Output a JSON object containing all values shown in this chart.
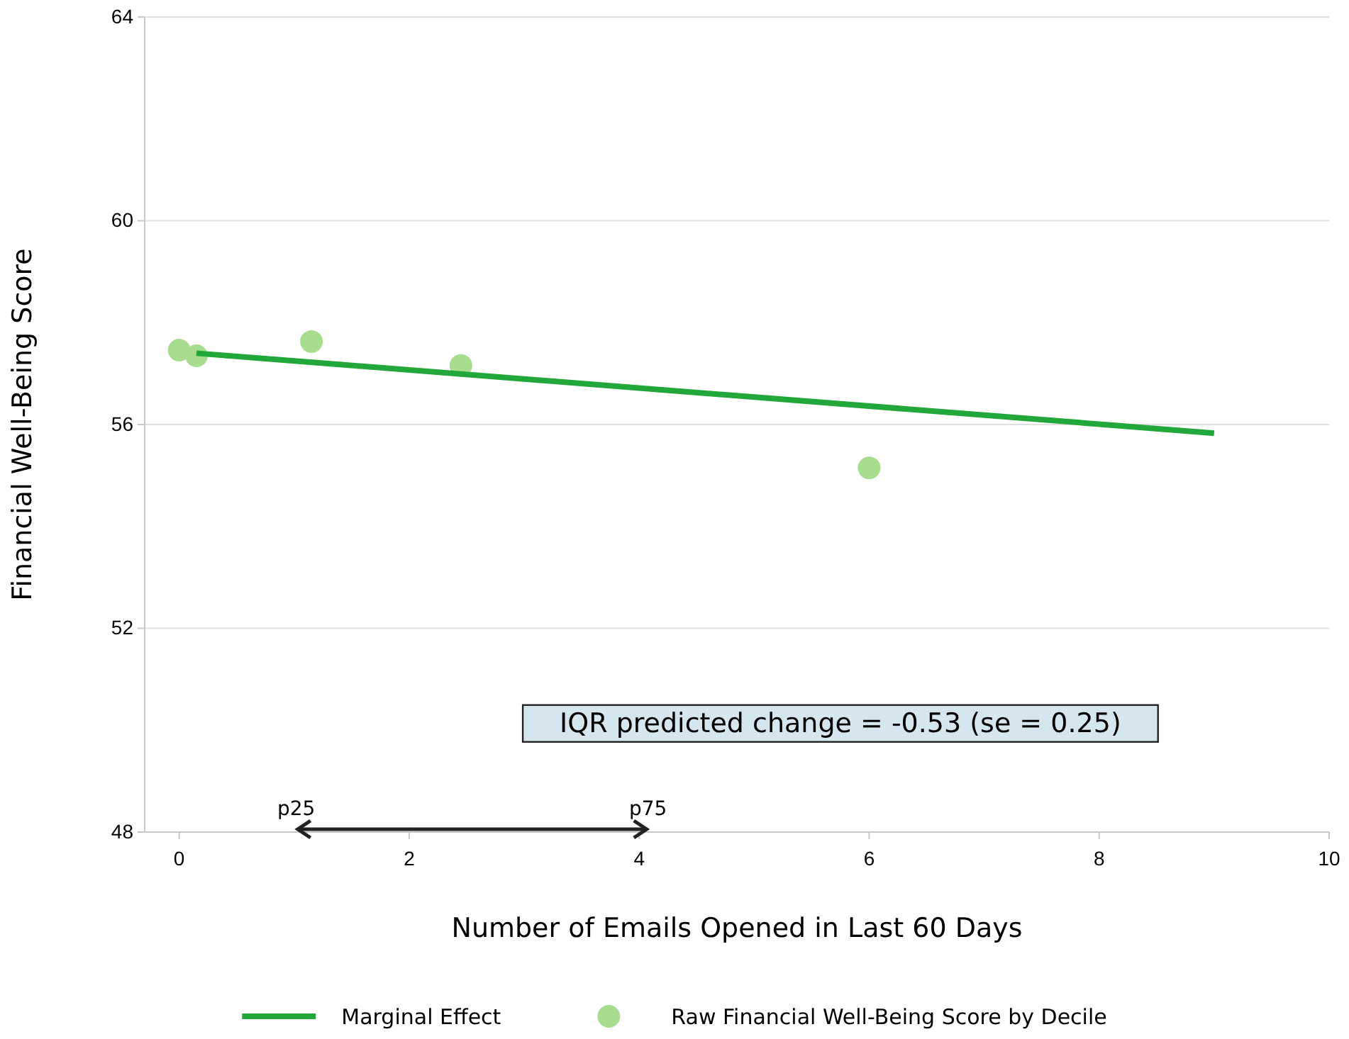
{
  "chart_data": {
    "type": "scatter",
    "xlabel": "Number of Emails Opened in Last 60 Days",
    "ylabel": "Financial Well-Being Score",
    "xlim": [
      -0.3,
      10
    ],
    "ylim": [
      48,
      64
    ],
    "xticks": [
      0,
      2,
      4,
      6,
      8,
      10
    ],
    "yticks": [
      48,
      52,
      56,
      60,
      64
    ],
    "grid": "y",
    "legend": "bottom",
    "series": [
      {
        "name": "Marginal Effect",
        "type": "line",
        "color": "#22a83a",
        "x": [
          0.15,
          9
        ],
        "values": [
          57.4,
          55.83
        ],
        "line_style": "solid"
      },
      {
        "name": "Raw Financial Well-Being Score by Decile",
        "color": "#a8dc8e",
        "x": [
          0,
          0.15,
          1.15,
          2.45,
          6
        ],
        "values": [
          57.46,
          57.35,
          57.63,
          57.16,
          55.15
        ],
        "marker": "circle"
      }
    ],
    "annotations": [
      "IQR predicted change = -0.53 (se = 0.25)",
      "p25",
      "p75"
    ]
  }
}
